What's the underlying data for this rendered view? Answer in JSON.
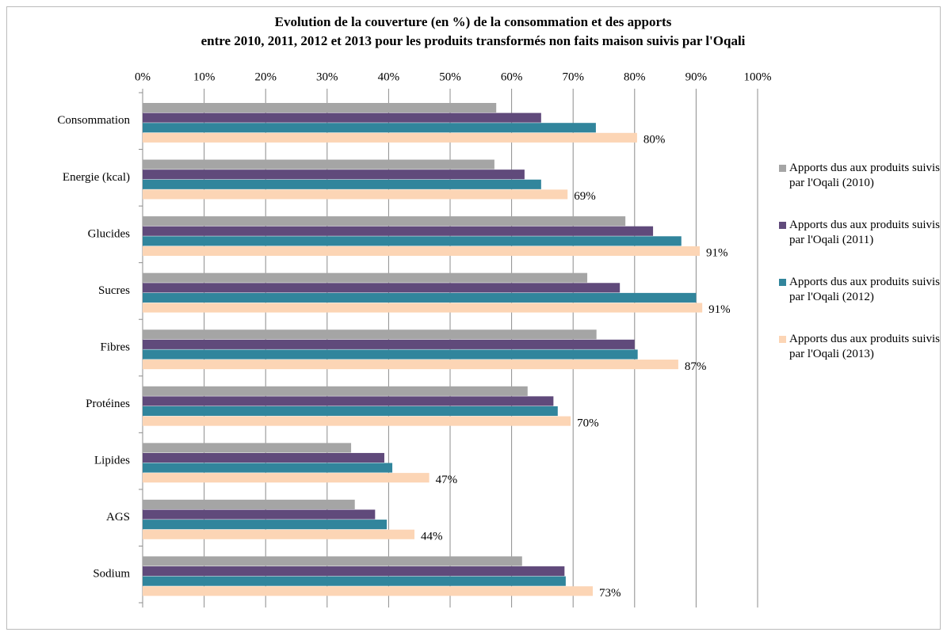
{
  "chart_data": {
    "type": "hbar",
    "title": [
      "Evolution de la couverture (en %) de la consommation et des apports",
      "entre 2010, 2011, 2012 et 2013 pour les produits transformés non faits maison suivis par l'Oqali"
    ],
    "categories": [
      "Consommation",
      "Energie (kcal)",
      "Glucides",
      "Sucres",
      "Fibres",
      "Protéines",
      "Lipides",
      "AGS",
      "Sodium"
    ],
    "series": [
      {
        "name": "Apports dus aux produits suivis par l'Oqali (2010)",
        "color": "#a5a5a5",
        "values": [
          57.5,
          57.2,
          78.5,
          72.3,
          73.8,
          62.6,
          33.9,
          34.5,
          61.7
        ]
      },
      {
        "name": "Apports dus aux produits suivis par l'Oqali (2011)",
        "color": "#604a7b",
        "values": [
          64.8,
          62.1,
          83.0,
          77.6,
          80.0,
          66.8,
          39.3,
          37.8,
          68.6
        ]
      },
      {
        "name": "Apports dus aux produits suivis par l'Oqali (2012)",
        "color": "#31859c",
        "values": [
          73.7,
          64.8,
          87.6,
          90.0,
          80.5,
          67.5,
          40.6,
          39.7,
          68.8
        ]
      },
      {
        "name": "Apports dus aux produits suivis par l'Oqali (2013)",
        "color": "#fcd5b5",
        "values": [
          80.4,
          69.1,
          90.6,
          91.0,
          87.1,
          69.6,
          46.6,
          44.2,
          73.2
        ],
        "value_labels": [
          "80%",
          "69%",
          "91%",
          "91%",
          "87%",
          "70%",
          "47%",
          "44%",
          "73%"
        ]
      }
    ],
    "xlim": [
      0,
      100
    ],
    "xticks": [
      {
        "value": 0,
        "label": "0%"
      },
      {
        "value": 10,
        "label": "10%"
      },
      {
        "value": 20,
        "label": "20%"
      },
      {
        "value": 30,
        "label": "30%"
      },
      {
        "value": 40,
        "label": "40%"
      },
      {
        "value": 50,
        "label": "50%"
      },
      {
        "value": 60,
        "label": "60%"
      },
      {
        "value": 70,
        "label": "70%"
      },
      {
        "value": 80,
        "label": "80%"
      },
      {
        "value": 90,
        "label": "90%"
      },
      {
        "value": 100,
        "label": "100%"
      }
    ],
    "grid": true,
    "legend": "right"
  }
}
